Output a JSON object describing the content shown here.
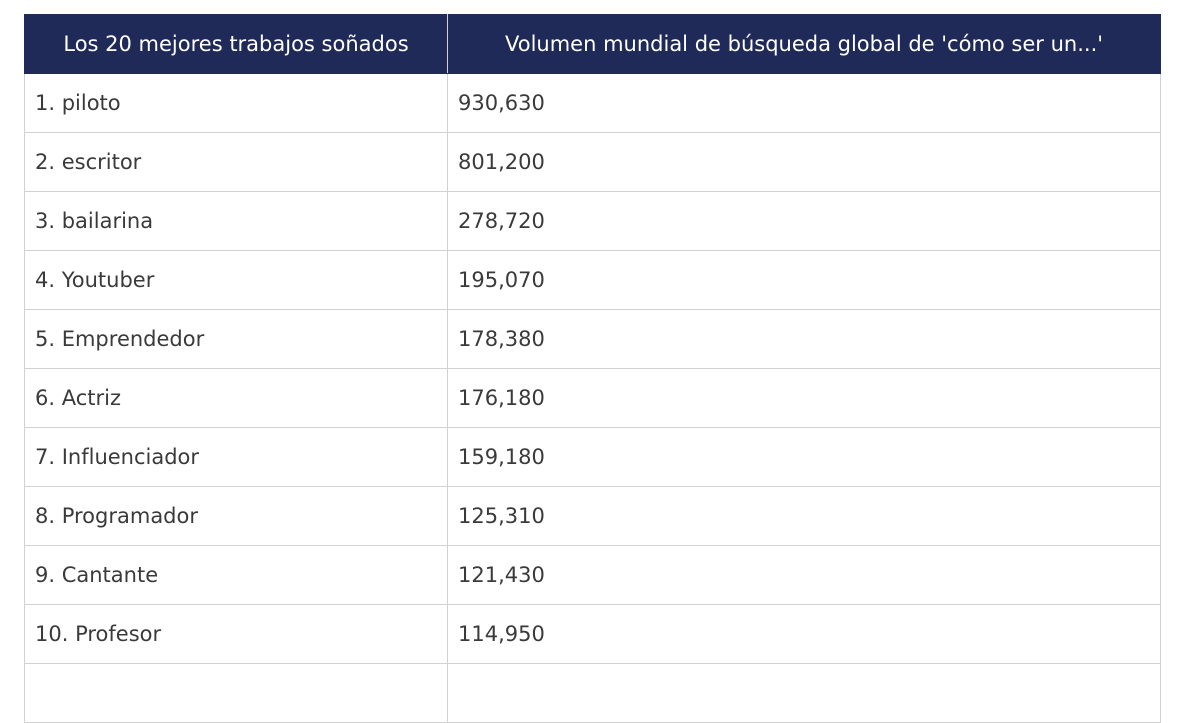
{
  "table": {
    "header": [
      "Los 20 mejores trabajos soñados",
      "Volumen mundial de búsqueda global de 'cómo ser un...'"
    ],
    "rows": [
      [
        "1. piloto",
        "930,630"
      ],
      [
        "2. escritor",
        "801,200"
      ],
      [
        "3. bailarina",
        "278,720"
      ],
      [
        "4. Youtuber",
        "195,070"
      ],
      [
        "5. Emprendedor",
        "178,380"
      ],
      [
        "6. Actriz",
        "176,180"
      ],
      [
        "7. Influenciador",
        "159,180"
      ],
      [
        "8. Programador",
        "125,310"
      ],
      [
        "9. Cantante",
        "121,430"
      ],
      [
        "10. Profesor",
        "114,950"
      ]
    ]
  }
}
